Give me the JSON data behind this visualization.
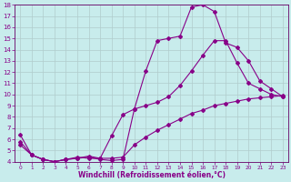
{
  "background_color": "#c8ecec",
  "grid_color": "#b0cccc",
  "line_color": "#880088",
  "xlabel": "Windchill (Refroidissement éolien,°C)",
  "xlim": [
    -0.5,
    23.5
  ],
  "ylim": [
    4,
    18
  ],
  "yticks": [
    4,
    5,
    6,
    7,
    8,
    9,
    10,
    11,
    12,
    13,
    14,
    15,
    16,
    17,
    18
  ],
  "xticks": [
    0,
    1,
    2,
    3,
    4,
    5,
    6,
    7,
    8,
    9,
    10,
    11,
    12,
    13,
    14,
    15,
    16,
    17,
    18,
    19,
    20,
    21,
    22,
    23
  ],
  "line1_x": [
    0,
    1,
    2,
    3,
    4,
    5,
    6,
    7,
    8,
    9,
    10,
    11,
    12,
    13,
    14,
    15,
    16,
    17,
    18,
    19,
    20,
    21,
    22,
    23
  ],
  "line1_y": [
    6.4,
    4.6,
    4.2,
    4.0,
    4.2,
    4.3,
    4.4,
    4.2,
    4.1,
    4.2,
    8.7,
    12.1,
    14.8,
    15.0,
    15.2,
    17.8,
    18.0,
    17.4,
    14.6,
    14.2,
    13.0,
    11.2,
    10.5,
    9.8
  ],
  "line2_x": [
    0,
    1,
    2,
    3,
    4,
    5,
    6,
    7,
    8,
    9,
    10,
    11,
    12,
    13,
    14,
    15,
    16,
    17,
    18,
    19,
    20,
    21,
    22,
    23
  ],
  "line2_y": [
    5.8,
    4.6,
    4.2,
    4.0,
    4.2,
    4.4,
    4.3,
    4.3,
    6.3,
    8.2,
    8.7,
    9.0,
    9.3,
    9.8,
    10.8,
    12.1,
    13.5,
    14.8,
    14.8,
    12.8,
    11.0,
    10.5,
    10.0,
    9.8
  ],
  "line3_x": [
    0,
    1,
    2,
    3,
    4,
    5,
    6,
    7,
    8,
    9,
    10,
    11,
    12,
    13,
    14,
    15,
    16,
    17,
    18,
    19,
    20,
    21,
    22,
    23
  ],
  "line3_y": [
    5.5,
    4.6,
    4.2,
    4.0,
    4.2,
    4.3,
    4.5,
    4.3,
    4.3,
    4.4,
    5.5,
    6.2,
    6.8,
    7.3,
    7.8,
    8.3,
    8.6,
    9.0,
    9.2,
    9.4,
    9.6,
    9.7,
    9.8,
    9.9
  ],
  "markersize": 2.0,
  "linewidth": 0.8,
  "tick_fontsize": 5,
  "xlabel_fontsize": 5.5,
  "tick_color": "#880088",
  "spine_color": "#660066"
}
